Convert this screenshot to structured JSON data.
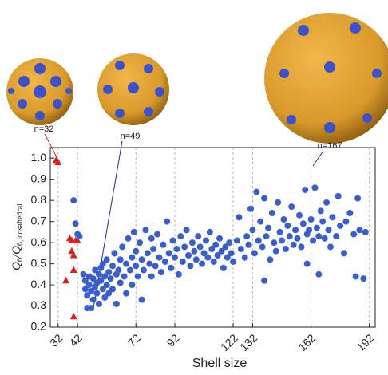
{
  "chart_data": {
    "type": "scatter",
    "x_label": "Shell size",
    "y_label": [
      "Q",
      "6",
      "/Q",
      "6,icosahedral"
    ],
    "annotations": [
      "n=32",
      "n=49",
      "n=167"
    ],
    "xlim": [
      28,
      195
    ],
    "ylim": [
      0.2,
      1.05
    ],
    "xticks": [
      32,
      42,
      72,
      92,
      122,
      132,
      162,
      192
    ],
    "yticks": [
      0.2,
      0.3,
      0.4,
      0.5,
      0.6,
      0.7,
      0.8,
      0.9,
      {
        "value": 1.0,
        "label": "1.0"
      }
    ],
    "grid": "x",
    "series": [
      {
        "color": "#e01e1e",
        "marker": "triangle",
        "x": [
          31,
          32,
          38,
          39,
          39,
          40,
          40,
          41,
          42,
          36,
          40
        ],
        "values": [
          0.99,
          0.98,
          0.62,
          0.61,
          0.56,
          0.54,
          0.47,
          0.61,
          0.61,
          0.42,
          0.25
        ]
      },
      {
        "color": "#3a5fcd",
        "marker": "circle",
        "x": [
          40,
          41,
          42,
          43,
          45,
          46,
          46,
          47,
          47,
          48,
          48,
          49,
          49,
          50,
          50,
          51,
          51,
          52,
          52,
          53,
          53,
          54,
          54,
          55,
          55,
          56,
          56,
          57,
          57,
          58,
          58,
          59,
          60,
          60,
          61,
          62,
          62,
          63,
          64,
          64,
          65,
          66,
          67,
          67,
          68,
          69,
          70,
          70,
          71,
          72,
          72,
          73,
          74,
          75,
          75,
          76,
          77,
          78,
          79,
          80,
          80,
          81,
          82,
          83,
          84,
          85,
          86,
          87,
          88,
          89,
          90,
          91,
          92,
          93,
          94,
          95,
          96,
          97,
          98,
          99,
          100,
          101,
          102,
          103,
          104,
          105,
          106,
          107,
          108,
          109,
          110,
          111,
          112,
          113,
          114,
          115,
          116,
          117,
          118,
          119,
          120,
          121,
          122,
          124,
          125,
          126,
          128,
          129,
          130,
          131,
          132,
          133,
          134,
          135,
          136,
          137,
          138,
          139,
          140,
          141,
          142,
          143,
          144,
          145,
          146,
          147,
          148,
          149,
          150,
          151,
          152,
          153,
          154,
          155,
          156,
          157,
          158,
          159,
          160,
          161,
          162,
          163,
          164,
          165,
          166,
          167,
          168,
          169,
          170,
          171,
          172,
          173,
          175,
          176,
          177,
          179,
          180,
          182,
          184,
          186,
          187,
          189,
          190,
          185,
          166,
          160,
          138
        ],
        "values": [
          0.8,
          0.69,
          0.64,
          0.63,
          0.45,
          0.38,
          0.42,
          0.35,
          0.29,
          0.44,
          0.4,
          0.29,
          0.37,
          0.43,
          0.33,
          0.47,
          0.39,
          0.41,
          0.36,
          0.45,
          0.31,
          0.48,
          0.42,
          0.38,
          0.5,
          0.44,
          0.34,
          0.4,
          0.52,
          0.46,
          0.36,
          0.43,
          0.49,
          0.38,
          0.55,
          0.45,
          0.31,
          0.47,
          0.52,
          0.41,
          0.58,
          0.44,
          0.5,
          0.36,
          0.62,
          0.47,
          0.53,
          0.4,
          0.65,
          0.49,
          0.56,
          0.44,
          0.6,
          0.52,
          0.33,
          0.47,
          0.66,
          0.55,
          0.5,
          0.62,
          0.44,
          0.57,
          0.49,
          0.64,
          0.53,
          0.46,
          0.59,
          0.51,
          0.7,
          0.55,
          0.48,
          0.61,
          0.53,
          0.57,
          0.45,
          0.63,
          0.51,
          0.58,
          0.66,
          0.54,
          0.49,
          0.6,
          0.56,
          0.52,
          0.63,
          0.58,
          0.5,
          0.55,
          0.61,
          0.53,
          0.65,
          0.57,
          0.51,
          0.59,
          0.54,
          0.62,
          0.56,
          0.48,
          0.58,
          0.53,
          0.6,
          0.55,
          0.51,
          0.61,
          0.72,
          0.57,
          0.53,
          0.63,
          0.59,
          0.76,
          0.66,
          0.55,
          0.84,
          0.61,
          0.7,
          0.58,
          0.81,
          0.63,
          0.67,
          0.52,
          0.74,
          0.6,
          0.56,
          0.79,
          0.65,
          0.61,
          0.71,
          0.57,
          0.68,
          0.63,
          0.77,
          0.59,
          0.66,
          0.62,
          0.73,
          0.58,
          0.69,
          0.85,
          0.64,
          0.66,
          0.71,
          0.61,
          0.86,
          0.67,
          0.63,
          0.75,
          0.7,
          0.62,
          0.79,
          0.66,
          0.58,
          0.72,
          0.63,
          0.82,
          0.68,
          0.55,
          0.7,
          0.74,
          0.64,
          0.81,
          0.66,
          0.43,
          0.65,
          0.44,
          0.45,
          0.5,
          0.42
        ]
      }
    ]
  }
}
